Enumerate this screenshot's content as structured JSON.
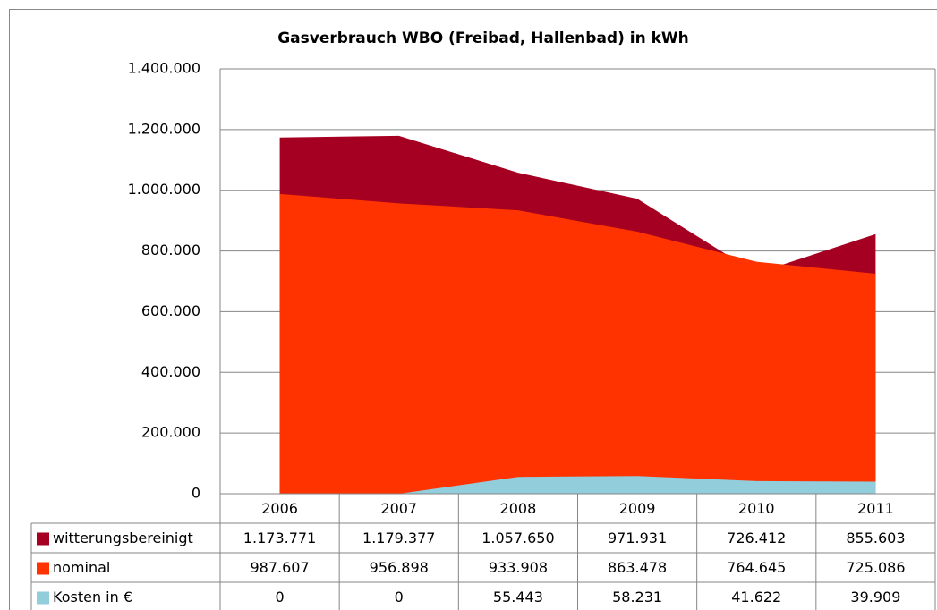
{
  "chart_data": {
    "type": "area",
    "title": "Gasverbrauch WBO (Freibad, Hallenbad) in kWh",
    "categories": [
      "2006",
      "2007",
      "2008",
      "2009",
      "2010",
      "2011"
    ],
    "series": [
      {
        "name": "witterungsbereinigt",
        "color": "#a50021",
        "values": [
          1173771,
          1179377,
          1057650,
          971931,
          726412,
          855603
        ],
        "value_labels": [
          "1.173.771",
          "1.179.377",
          "1.057.650",
          "971.931",
          "726.412",
          "855.603"
        ]
      },
      {
        "name": "nominal",
        "color": "#ff3300",
        "values": [
          987607,
          956898,
          933908,
          863478,
          764645,
          725086
        ],
        "value_labels": [
          "987.607",
          "956.898",
          "933.908",
          "863.478",
          "764.645",
          "725.086"
        ]
      },
      {
        "name": "Kosten in €",
        "color": "#92cddc",
        "values": [
          0,
          0,
          55443,
          58231,
          41622,
          39909
        ],
        "value_labels": [
          "0",
          "0",
          "55.443",
          "58.231",
          "41.622",
          "39.909"
        ]
      }
    ],
    "ylim": [
      0,
      1400000
    ],
    "yticks": [
      0,
      {
        "value": 200000,
        "label": "200.000"
      },
      {
        "value": 400000,
        "label": "400.000"
      },
      {
        "value": 600000,
        "label": "600.000"
      },
      {
        "value": 800000,
        "label": "800.000"
      },
      {
        "value": 1000000,
        "label": "1.000.000"
      },
      {
        "value": 1200000,
        "label": "1.200.000"
      },
      {
        "value": 1400000,
        "label": "1.400.000"
      }
    ],
    "grid": true
  }
}
